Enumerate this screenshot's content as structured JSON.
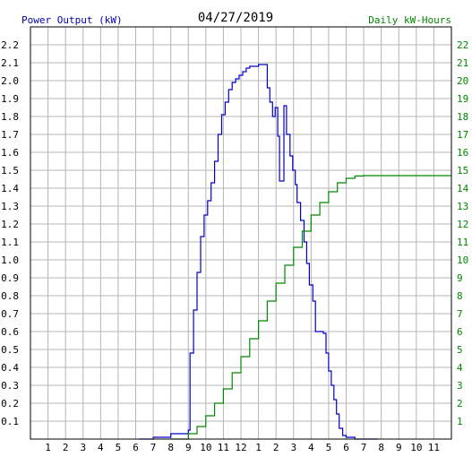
{
  "header": {
    "left_label": "Power Output (kW)",
    "date": "04/27/2019",
    "right_label": "Daily kW-Hours"
  },
  "colors": {
    "power": "#0000cc",
    "energy": "#008800",
    "grid": "#b4b4b4",
    "frame": "#000000"
  },
  "chart_data": {
    "type": "line",
    "x_ticks": [
      "1",
      "2",
      "3",
      "4",
      "5",
      "6",
      "7",
      "8",
      "9",
      "10",
      "11",
      "12",
      "1",
      "2",
      "3",
      "4",
      "5",
      "6",
      "7",
      "8",
      "9",
      "10",
      "11"
    ],
    "y_left_ticks": [
      "0.1",
      "0.2",
      "0.3",
      "0.4",
      "0.5",
      "0.6",
      "0.7",
      "0.8",
      "0.9",
      "1.0",
      "1.1",
      "1.2",
      "1.3",
      "1.4",
      "1.5",
      "1.6",
      "1.7",
      "1.8",
      "1.9",
      "2.0",
      "2.1",
      "2.2"
    ],
    "y_right_ticks": [
      "1",
      "2",
      "3",
      "4",
      "5",
      "6",
      "7",
      "8",
      "9",
      "10",
      "11",
      "12",
      "13",
      "14",
      "15",
      "16",
      "17",
      "18",
      "19",
      "20",
      "21",
      "22"
    ],
    "xlim": [
      0,
      24
    ],
    "ylim_left": [
      0,
      2.3
    ],
    "ylim_right": [
      0,
      23
    ],
    "series": [
      {
        "axis": "left",
        "points": [
          [
            6.2,
            0.0
          ],
          [
            7.0,
            0.01
          ],
          [
            8.0,
            0.03
          ],
          [
            9.0,
            0.05
          ],
          [
            9.1,
            0.48
          ],
          [
            9.3,
            0.72
          ],
          [
            9.5,
            0.93
          ],
          [
            9.7,
            1.13
          ],
          [
            9.9,
            1.25
          ],
          [
            10.1,
            1.33
          ],
          [
            10.3,
            1.43
          ],
          [
            10.5,
            1.55
          ],
          [
            10.7,
            1.7
          ],
          [
            10.9,
            1.81
          ],
          [
            11.1,
            1.88
          ],
          [
            11.3,
            1.95
          ],
          [
            11.5,
            1.99
          ],
          [
            11.7,
            2.01
          ],
          [
            11.9,
            2.03
          ],
          [
            12.1,
            2.05
          ],
          [
            12.3,
            2.07
          ],
          [
            12.5,
            2.08
          ],
          [
            12.7,
            2.08
          ],
          [
            13.0,
            2.09
          ],
          [
            13.3,
            2.09
          ],
          [
            13.5,
            1.96
          ],
          [
            13.65,
            1.88
          ],
          [
            13.8,
            1.8
          ],
          [
            13.95,
            1.85
          ],
          [
            14.1,
            1.69
          ],
          [
            14.2,
            1.44
          ],
          [
            14.45,
            1.86
          ],
          [
            14.6,
            1.7
          ],
          [
            14.8,
            1.58
          ],
          [
            14.95,
            1.5
          ],
          [
            15.1,
            1.42
          ],
          [
            15.2,
            1.32
          ],
          [
            15.4,
            1.22
          ],
          [
            15.6,
            1.1
          ],
          [
            15.75,
            0.98
          ],
          [
            15.9,
            0.86
          ],
          [
            16.1,
            0.77
          ],
          [
            16.25,
            0.6
          ],
          [
            16.7,
            0.59
          ],
          [
            16.85,
            0.48
          ],
          [
            17.0,
            0.38
          ],
          [
            17.15,
            0.3
          ],
          [
            17.3,
            0.22
          ],
          [
            17.45,
            0.14
          ],
          [
            17.6,
            0.06
          ],
          [
            17.8,
            0.02
          ],
          [
            18.0,
            0.01
          ],
          [
            18.5,
            0.0
          ],
          [
            19.8,
            0.0
          ]
        ]
      },
      {
        "axis": "right",
        "points": [
          [
            8.0,
            0.0
          ],
          [
            9.0,
            0.3
          ],
          [
            9.5,
            0.7
          ],
          [
            10.0,
            1.3
          ],
          [
            10.5,
            2.0
          ],
          [
            11.0,
            2.8
          ],
          [
            11.5,
            3.7
          ],
          [
            12.0,
            4.6
          ],
          [
            12.5,
            5.6
          ],
          [
            13.0,
            6.6
          ],
          [
            13.5,
            7.7
          ],
          [
            14.0,
            8.7
          ],
          [
            14.5,
            9.7
          ],
          [
            15.0,
            10.7
          ],
          [
            15.5,
            11.6
          ],
          [
            16.0,
            12.5
          ],
          [
            16.5,
            13.2
          ],
          [
            17.0,
            13.8
          ],
          [
            17.5,
            14.3
          ],
          [
            18.0,
            14.55
          ],
          [
            18.5,
            14.68
          ],
          [
            19.0,
            14.7
          ],
          [
            20.0,
            14.7
          ],
          [
            21.0,
            14.7
          ],
          [
            22.0,
            14.7
          ],
          [
            23.0,
            14.7
          ],
          [
            24.0,
            14.7
          ]
        ]
      }
    ]
  }
}
